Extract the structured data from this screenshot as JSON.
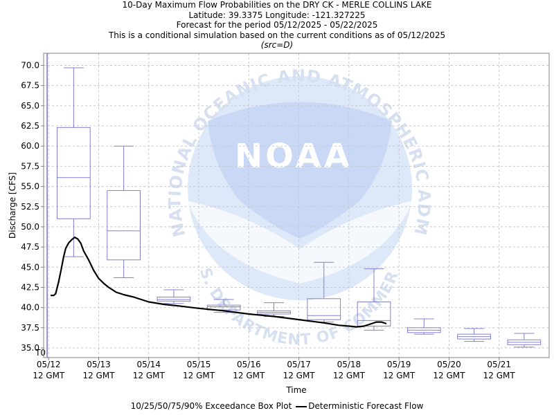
{
  "titles": {
    "line1": "10-Day Maximum Flow Probabilities on the DRY CK - MERLE COLLINS LAKE",
    "line2": "Latitude: 39.3375 Longitude: -121.327225",
    "line3": "Forecast for the period 05/12/2025 - 05/22/2025",
    "line4": "This is a conditional simulation based on the current conditions as of 05/12/2025",
    "line5": "(src=D)"
  },
  "watermark": {
    "logo_text": "NOAA",
    "ring_text": "NATIONAL OCEANIC AND ATMOSPHERIC ADMINISTRATION",
    "bottom_text": "U.S. DEPARTMENT OF COMMERCE"
  },
  "legend": {
    "box_label": "10/25/50/75/90% Exceedance Box Plot",
    "line_label": "Deterministic Forecast Flow"
  },
  "chart_data": {
    "type": "box",
    "title": "10-Day Maximum Flow Probabilities on the DRY CK - MERLE COLLINS LAKE",
    "xlabel": "Time",
    "ylabel": "Discharge [CFS]",
    "ylim": [
      33.8,
      71.5
    ],
    "yticks": [
      35.0,
      37.5,
      40.0,
      42.5,
      45.0,
      47.5,
      50.0,
      52.5,
      55.0,
      57.5,
      60.0,
      62.5,
      65.0,
      67.5,
      70.0
    ],
    "xlim": [
      -0.1,
      10.0
    ],
    "x_units": "days after 05/12 12 GMT",
    "xticks": [
      {
        "x": 0,
        "date": "05/12",
        "time": "12 GMT"
      },
      {
        "x": 1,
        "date": "05/13",
        "time": "12 GMT"
      },
      {
        "x": 2,
        "date": "05/14",
        "time": "12 GMT"
      },
      {
        "x": 3,
        "date": "05/15",
        "time": "12 GMT"
      },
      {
        "x": 4,
        "date": "05/16",
        "time": "12 GMT"
      },
      {
        "x": 5,
        "date": "05/17",
        "time": "12 GMT"
      },
      {
        "x": 6,
        "date": "05/18",
        "time": "12 GMT"
      },
      {
        "x": 7,
        "date": "05/19",
        "time": "12 GMT"
      },
      {
        "x": 8,
        "date": "05/20",
        "time": "12 GMT"
      },
      {
        "x": 9,
        "date": "05/21",
        "time": "12 GMT"
      }
    ],
    "t0": {
      "x": -0.03,
      "label": "T0"
    },
    "grid": true,
    "colors": {
      "box": "#8080d0",
      "line": "#000000",
      "t0": "#5050c0",
      "grid": "#c8c8c8"
    },
    "boxes": [
      {
        "x": 0.5,
        "p10": 46.3,
        "p25": 51.0,
        "p50": 56.1,
        "p75": 62.3,
        "p90": 69.7
      },
      {
        "x": 1.5,
        "p10": 43.7,
        "p25": 45.9,
        "p50": 49.5,
        "p75": 54.5,
        "p90": 60.0
      },
      {
        "x": 2.5,
        "p10": 40.5,
        "p25": 40.8,
        "p50": 41.0,
        "p75": 41.3,
        "p90": 42.2
      },
      {
        "x": 3.5,
        "p10": 39.4,
        "p25": 39.7,
        "p50": 40.1,
        "p75": 40.3,
        "p90": 41.0
      },
      {
        "x": 4.5,
        "p10": 38.9,
        "p25": 39.2,
        "p50": 39.4,
        "p75": 39.6,
        "p90": 40.6
      },
      {
        "x": 5.5,
        "p10": 38.2,
        "p25": 38.5,
        "p50": 39.0,
        "p75": 41.1,
        "p90": 45.6
      },
      {
        "x": 6.5,
        "p10": 37.2,
        "p25": 37.7,
        "p50": 38.4,
        "p75": 40.7,
        "p90": 44.8
      },
      {
        "x": 7.5,
        "p10": 36.7,
        "p25": 36.9,
        "p50": 37.2,
        "p75": 37.5,
        "p90": 38.6
      },
      {
        "x": 8.5,
        "p10": 35.8,
        "p25": 36.1,
        "p50": 36.4,
        "p75": 36.7,
        "p90": 37.4
      },
      {
        "x": 9.5,
        "p10": 35.1,
        "p25": 35.4,
        "p50": 35.7,
        "p75": 36.0,
        "p90": 36.8
      }
    ],
    "series": [
      {
        "name": "Deterministic Forecast Flow",
        "points": [
          [
            0.04,
            41.5
          ],
          [
            0.1,
            41.5
          ],
          [
            0.14,
            41.7
          ],
          [
            0.2,
            43.2
          ],
          [
            0.26,
            45.0
          ],
          [
            0.3,
            46.3
          ],
          [
            0.34,
            47.3
          ],
          [
            0.4,
            48.0
          ],
          [
            0.46,
            48.4
          ],
          [
            0.52,
            48.7
          ],
          [
            0.58,
            48.5
          ],
          [
            0.64,
            48.0
          ],
          [
            0.7,
            47.0
          ],
          [
            0.8,
            45.9
          ],
          [
            0.9,
            44.6
          ],
          [
            1.0,
            43.6
          ],
          [
            1.1,
            43.0
          ],
          [
            1.2,
            42.5
          ],
          [
            1.35,
            41.9
          ],
          [
            1.5,
            41.6
          ],
          [
            1.7,
            41.3
          ],
          [
            1.85,
            41.0
          ],
          [
            2.0,
            40.7
          ],
          [
            2.3,
            40.4
          ],
          [
            2.6,
            40.2
          ],
          [
            3.0,
            39.9
          ],
          [
            3.5,
            39.6
          ],
          [
            4.0,
            39.2
          ],
          [
            4.5,
            38.9
          ],
          [
            5.0,
            38.5
          ],
          [
            5.5,
            38.1
          ],
          [
            5.8,
            37.8
          ],
          [
            6.0,
            37.7
          ],
          [
            6.15,
            37.6
          ],
          [
            6.3,
            37.7
          ],
          [
            6.45,
            38.0
          ],
          [
            6.55,
            38.2
          ],
          [
            6.65,
            38.2
          ],
          [
            6.75,
            38.0
          ]
        ]
      }
    ]
  }
}
